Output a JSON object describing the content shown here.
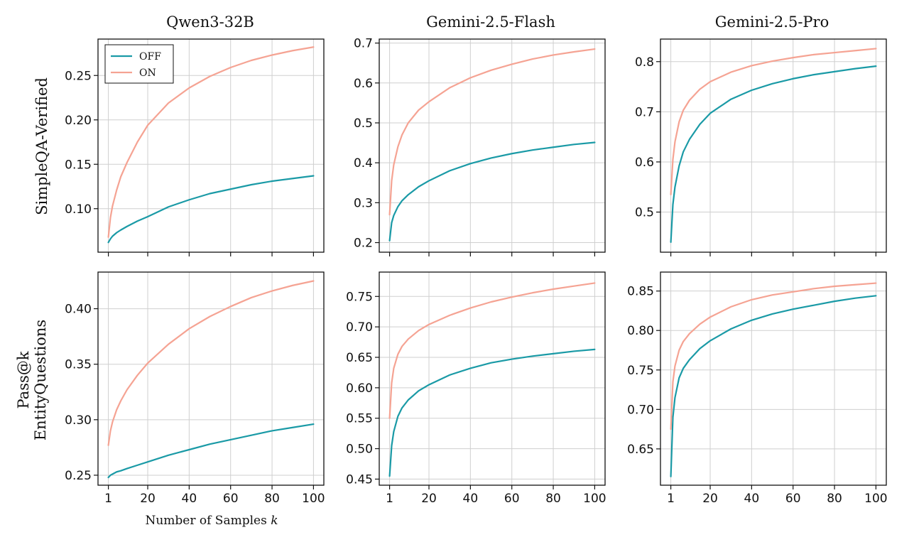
{
  "columns": [
    "Qwen3-32B",
    "Gemini-2.5-Flash",
    "Gemini-2.5-Pro"
  ],
  "rows": [
    {
      "label_lines": [
        "SimpleQA-Verified"
      ]
    },
    {
      "label_lines": [
        "Pass@k",
        "EntityQuestions"
      ]
    }
  ],
  "x_axis_label": "Number of Samples",
  "x_axis_var": "k",
  "colors": {
    "OFF": "#1a9aa6",
    "ON": "#f5a393"
  },
  "legend": {
    "placement": "upper-left",
    "entries": [
      "OFF",
      "ON"
    ]
  },
  "chart_data": [
    {
      "type": "line",
      "row": 0,
      "col": 0,
      "title": "Qwen3-32B",
      "xlim": [
        -4,
        105
      ],
      "ylim": [
        0.051,
        0.291
      ],
      "xticks": [
        1,
        20,
        40,
        60,
        80,
        100
      ],
      "yticks": [
        0.1,
        0.15,
        0.2,
        0.25
      ],
      "ytick_labels": [
        "0.10",
        "0.15",
        "0.20",
        "0.25"
      ],
      "grid": true,
      "legend": "upper-left",
      "x": [
        1,
        2,
        3,
        5,
        7,
        10,
        15,
        20,
        30,
        40,
        50,
        60,
        70,
        80,
        90,
        100
      ],
      "series": [
        {
          "name": "OFF",
          "values": [
            0.062,
            0.066,
            0.069,
            0.073,
            0.076,
            0.08,
            0.086,
            0.091,
            0.102,
            0.11,
            0.117,
            0.122,
            0.127,
            0.131,
            0.134,
            0.137
          ]
        },
        {
          "name": "ON",
          "values": [
            0.068,
            0.09,
            0.103,
            0.121,
            0.136,
            0.152,
            0.175,
            0.194,
            0.219,
            0.236,
            0.249,
            0.259,
            0.267,
            0.273,
            0.278,
            0.282
          ]
        }
      ]
    },
    {
      "type": "line",
      "row": 0,
      "col": 1,
      "title": "Gemini-2.5-Flash",
      "xlim": [
        -4,
        105
      ],
      "ylim": [
        0.176,
        0.71
      ],
      "xticks": [
        1,
        20,
        40,
        60,
        80,
        100
      ],
      "yticks": [
        0.2,
        0.3,
        0.4,
        0.5,
        0.6,
        0.7
      ],
      "ytick_labels": [
        "0.2",
        "0.3",
        "0.4",
        "0.5",
        "0.6",
        "0.7"
      ],
      "grid": true,
      "x": [
        1,
        2,
        3,
        5,
        7,
        10,
        15,
        20,
        30,
        40,
        50,
        60,
        70,
        80,
        90,
        100
      ],
      "series": [
        {
          "name": "OFF",
          "values": [
            0.205,
            0.25,
            0.268,
            0.29,
            0.305,
            0.32,
            0.34,
            0.355,
            0.38,
            0.398,
            0.412,
            0.423,
            0.432,
            0.439,
            0.446,
            0.451
          ]
        },
        {
          "name": "ON",
          "values": [
            0.27,
            0.355,
            0.395,
            0.44,
            0.47,
            0.5,
            0.532,
            0.553,
            0.588,
            0.613,
            0.632,
            0.647,
            0.66,
            0.67,
            0.678,
            0.685
          ]
        }
      ]
    },
    {
      "type": "line",
      "row": 0,
      "col": 2,
      "title": "Gemini-2.5-Pro",
      "xlim": [
        -4,
        105
      ],
      "ylim": [
        0.42,
        0.845
      ],
      "xticks": [
        1,
        20,
        40,
        60,
        80,
        100
      ],
      "yticks": [
        0.5,
        0.6,
        0.7,
        0.8
      ],
      "ytick_labels": [
        "0.5",
        "0.6",
        "0.7",
        "0.8"
      ],
      "grid": true,
      "x": [
        1,
        2,
        3,
        5,
        7,
        10,
        15,
        20,
        30,
        40,
        50,
        60,
        70,
        80,
        90,
        100
      ],
      "series": [
        {
          "name": "OFF",
          "values": [
            0.44,
            0.515,
            0.55,
            0.592,
            0.62,
            0.645,
            0.675,
            0.697,
            0.725,
            0.743,
            0.756,
            0.766,
            0.774,
            0.78,
            0.786,
            0.791
          ]
        },
        {
          "name": "ON",
          "values": [
            0.535,
            0.605,
            0.64,
            0.68,
            0.703,
            0.723,
            0.745,
            0.76,
            0.779,
            0.792,
            0.801,
            0.808,
            0.814,
            0.818,
            0.822,
            0.826
          ]
        }
      ]
    },
    {
      "type": "line",
      "row": 1,
      "col": 0,
      "title": "",
      "xlim": [
        -4,
        105
      ],
      "ylim": [
        0.241,
        0.433
      ],
      "xticks": [
        1,
        20,
        40,
        60,
        80,
        100
      ],
      "yticks": [
        0.25,
        0.3,
        0.35,
        0.4
      ],
      "ytick_labels": [
        "0.25",
        "0.30",
        "0.35",
        "0.40"
      ],
      "grid": true,
      "x": [
        1,
        2,
        3,
        5,
        7,
        10,
        15,
        20,
        30,
        40,
        50,
        60,
        70,
        80,
        90,
        100
      ],
      "series": [
        {
          "name": "OFF",
          "values": [
            0.248,
            0.25,
            0.251,
            0.253,
            0.254,
            0.256,
            0.259,
            0.262,
            0.268,
            0.273,
            0.278,
            0.282,
            0.286,
            0.29,
            0.293,
            0.296
          ]
        },
        {
          "name": "ON",
          "values": [
            0.277,
            0.29,
            0.298,
            0.309,
            0.317,
            0.327,
            0.34,
            0.351,
            0.368,
            0.382,
            0.393,
            0.402,
            0.41,
            0.416,
            0.421,
            0.425
          ]
        }
      ]
    },
    {
      "type": "line",
      "row": 1,
      "col": 1,
      "title": "",
      "xlim": [
        -4,
        105
      ],
      "ylim": [
        0.44,
        0.79
      ],
      "xticks": [
        1,
        20,
        40,
        60,
        80,
        100
      ],
      "yticks": [
        0.45,
        0.5,
        0.55,
        0.6,
        0.65,
        0.7,
        0.75
      ],
      "ytick_labels": [
        "0.45",
        "0.50",
        "0.55",
        "0.60",
        "0.65",
        "0.70",
        "0.75"
      ],
      "grid": true,
      "x": [
        1,
        2,
        3,
        5,
        7,
        10,
        15,
        20,
        30,
        40,
        50,
        60,
        70,
        80,
        90,
        100
      ],
      "series": [
        {
          "name": "OFF",
          "values": [
            0.455,
            0.505,
            0.528,
            0.553,
            0.567,
            0.58,
            0.595,
            0.605,
            0.621,
            0.632,
            0.641,
            0.647,
            0.652,
            0.656,
            0.66,
            0.663
          ]
        },
        {
          "name": "ON",
          "values": [
            0.55,
            0.608,
            0.632,
            0.655,
            0.668,
            0.68,
            0.694,
            0.704,
            0.719,
            0.731,
            0.741,
            0.749,
            0.756,
            0.762,
            0.767,
            0.772
          ]
        }
      ]
    },
    {
      "type": "line",
      "row": 1,
      "col": 2,
      "title": "",
      "xlim": [
        -4,
        105
      ],
      "ylim": [
        0.604,
        0.874
      ],
      "xticks": [
        1,
        20,
        40,
        60,
        80,
        100
      ],
      "yticks": [
        0.65,
        0.7,
        0.75,
        0.8,
        0.85
      ],
      "ytick_labels": [
        "0.65",
        "0.70",
        "0.75",
        "0.80",
        "0.85"
      ],
      "grid": true,
      "x": [
        1,
        2,
        3,
        5,
        7,
        10,
        15,
        20,
        30,
        40,
        50,
        60,
        70,
        80,
        90,
        100
      ],
      "series": [
        {
          "name": "OFF",
          "values": [
            0.615,
            0.69,
            0.715,
            0.74,
            0.752,
            0.763,
            0.777,
            0.787,
            0.802,
            0.813,
            0.821,
            0.827,
            0.832,
            0.837,
            0.841,
            0.844
          ]
        },
        {
          "name": "ON",
          "values": [
            0.675,
            0.735,
            0.755,
            0.775,
            0.786,
            0.796,
            0.808,
            0.817,
            0.83,
            0.839,
            0.845,
            0.849,
            0.853,
            0.856,
            0.858,
            0.86
          ]
        }
      ]
    }
  ]
}
